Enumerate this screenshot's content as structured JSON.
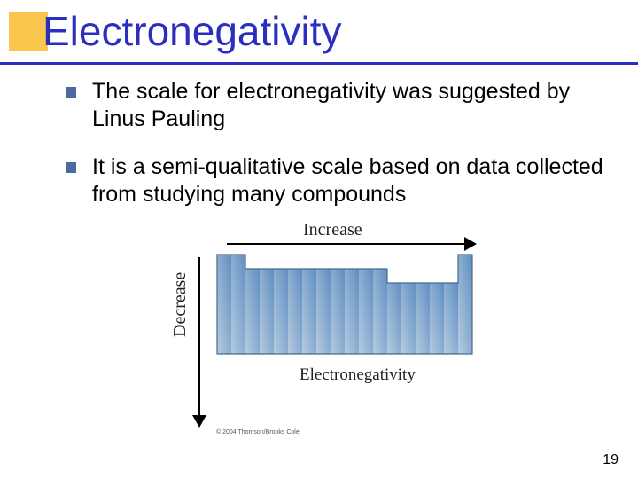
{
  "title": "Electronegativity",
  "bullets": [
    "The scale for electronegativity was suggested by Linus Pauling",
    "It is a semi-qualitative scale based on data collected from studying many compounds"
  ],
  "diagram": {
    "top_label": "Increase",
    "left_label": "Decrease",
    "center_label": "Electronegativity",
    "copyright": "© 2004 Thomson/Brooks Cole",
    "ptable": {
      "cell": 16,
      "cols": 18,
      "fill_light": "#b6cbe0",
      "fill_dark": "#5f8fc1",
      "stroke": "#4a6a8a",
      "columns_heights": [
        7,
        7,
        6,
        6,
        6,
        6,
        6,
        6,
        6,
        6,
        6,
        6,
        5,
        5,
        5,
        5,
        5,
        7
      ],
      "left_block_end": 2,
      "right_block_start": 12
    }
  },
  "accent_color": "#fbc64e",
  "title_color": "#2a2fbf",
  "page_number": "19"
}
